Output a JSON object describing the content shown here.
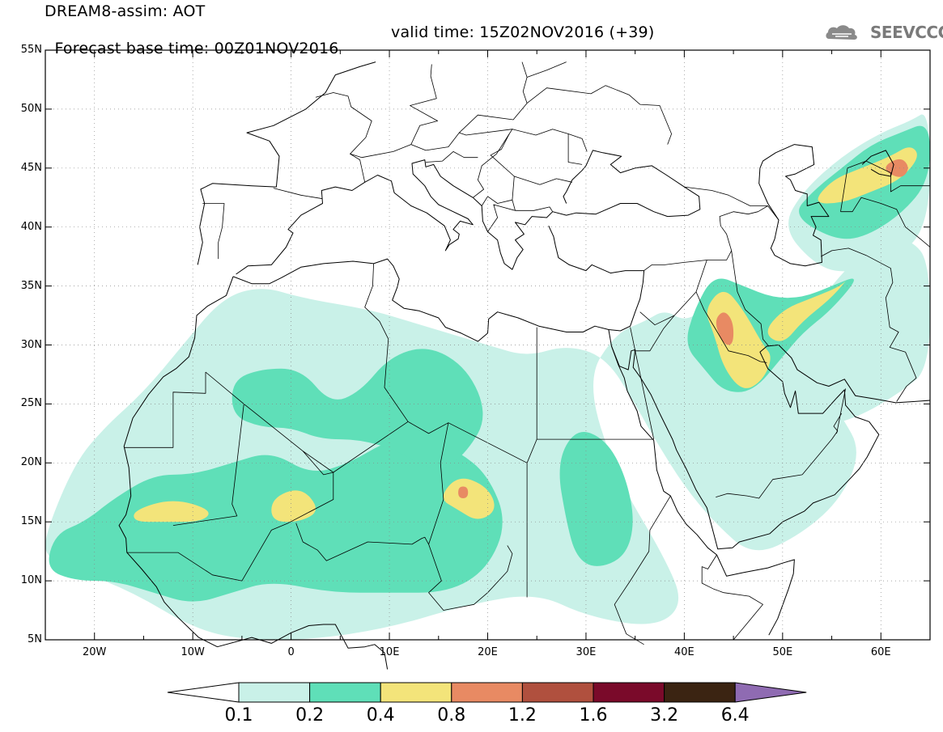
{
  "title": {
    "line1": "DREAM8-assim: AOT",
    "line2_base": "Forecast base time: 00Z01NOV2016",
    "line2_valid": "valid time: 15Z02NOV2016 (+39)"
  },
  "logo": {
    "text": "SEEVCCC",
    "icon": "cloud-icon"
  },
  "axes": {
    "lat_labels": [
      "55N",
      "50N",
      "45N",
      "40N",
      "35N",
      "30N",
      "25N",
      "20N",
      "15N",
      "10N",
      "5N"
    ],
    "lon_labels": [
      "20W",
      "10W",
      "0",
      "10E",
      "20E",
      "30E",
      "40E",
      "50E",
      "60E"
    ]
  },
  "colorbar": {
    "labels": [
      "0.1",
      "0.2",
      "0.4",
      "0.8",
      "1.2",
      "1.6",
      "3.2",
      "6.4"
    ],
    "colors": [
      "#ffffff",
      "#c9f1e8",
      "#5fdfb8",
      "#f3e47a",
      "#e88a63",
      "#b0503e",
      "#7a0a2a",
      "#3b2412",
      "#8f6bb2"
    ]
  },
  "chart_data": {
    "type": "heatmap",
    "variable": "AOT",
    "lat_range": [
      5,
      55
    ],
    "lon_range": [
      -25,
      65
    ],
    "levels": [
      0.1,
      0.2,
      0.4,
      0.8,
      1.2,
      1.6,
      3.2,
      6.4
    ],
    "regions": [
      {
        "level": 0.1,
        "pts": [
          [
            -25,
            14
          ],
          [
            -22,
            20
          ],
          [
            -19,
            23
          ],
          [
            -15,
            26
          ],
          [
            -11,
            30
          ],
          [
            -7,
            34
          ],
          [
            -3,
            35
          ],
          [
            1,
            34
          ],
          [
            8,
            33
          ],
          [
            12,
            32
          ],
          [
            16,
            31
          ],
          [
            20,
            30
          ],
          [
            24,
            29
          ],
          [
            28,
            30
          ],
          [
            32,
            29
          ],
          [
            35,
            25
          ],
          [
            37,
            22
          ],
          [
            40,
            18
          ],
          [
            43,
            15
          ],
          [
            47,
            12
          ],
          [
            52,
            14
          ],
          [
            56,
            17
          ],
          [
            58,
            21
          ],
          [
            56,
            24
          ],
          [
            54,
            26
          ],
          [
            51,
            27
          ],
          [
            49,
            29
          ],
          [
            47,
            32
          ],
          [
            45,
            34
          ],
          [
            43,
            35
          ],
          [
            42,
            33
          ],
          [
            40,
            32
          ],
          [
            38,
            33
          ],
          [
            36,
            32
          ],
          [
            33,
            31
          ],
          [
            30,
            27
          ],
          [
            33,
            19
          ],
          [
            38,
            12
          ],
          [
            40,
            8
          ],
          [
            37,
            6
          ],
          [
            30,
            7
          ],
          [
            25,
            9
          ],
          [
            18,
            8
          ],
          [
            10,
            6
          ],
          [
            2,
            5
          ],
          [
            -5,
            5
          ],
          [
            -10,
            6
          ],
          [
            -16,
            9
          ],
          [
            -22,
            11
          ],
          [
            -25,
            12
          ]
        ]
      },
      {
        "level": 0.1,
        "pts": [
          [
            48,
            28
          ],
          [
            50,
            25
          ],
          [
            54,
            23
          ],
          [
            58,
            24
          ],
          [
            62,
            26
          ],
          [
            65,
            28
          ],
          [
            65,
            37
          ],
          [
            63,
            39
          ],
          [
            60,
            39
          ],
          [
            57,
            37
          ],
          [
            53,
            33
          ],
          [
            50,
            31
          ]
        ]
      },
      {
        "level": 0.1,
        "pts": [
          [
            50,
            40
          ],
          [
            52,
            43
          ],
          [
            56,
            46
          ],
          [
            60,
            48
          ],
          [
            63,
            49
          ],
          [
            65,
            50
          ],
          [
            65,
            40
          ],
          [
            61,
            37
          ],
          [
            56,
            36
          ],
          [
            53,
            37
          ]
        ]
      },
      {
        "level": 0.2,
        "pts": [
          [
            -25,
            11
          ],
          [
            -24,
            14
          ],
          [
            -21,
            15
          ],
          [
            -18,
            17
          ],
          [
            -14,
            19
          ],
          [
            -10,
            19
          ],
          [
            -6,
            20
          ],
          [
            -2,
            21
          ],
          [
            2,
            19
          ],
          [
            6,
            20
          ],
          [
            10,
            22
          ],
          [
            14,
            22
          ],
          [
            17,
            21
          ],
          [
            20,
            19
          ],
          [
            22,
            15
          ],
          [
            20,
            11
          ],
          [
            16,
            9
          ],
          [
            10,
            9
          ],
          [
            4,
            9
          ],
          [
            -2,
            10
          ],
          [
            -6,
            9
          ],
          [
            -10,
            8
          ],
          [
            -14,
            9
          ],
          [
            -18,
            10
          ],
          [
            -22,
            10
          ]
        ]
      },
      {
        "level": 0.2,
        "pts": [
          [
            -6,
            27
          ],
          [
            -3,
            28
          ],
          [
            1,
            28
          ],
          [
            4,
            25
          ],
          [
            7,
            26
          ],
          [
            10,
            29
          ],
          [
            14,
            30
          ],
          [
            18,
            28
          ],
          [
            20,
            24
          ],
          [
            18,
            21
          ],
          [
            15,
            19
          ],
          [
            11,
            21
          ],
          [
            7,
            22
          ],
          [
            3,
            22
          ],
          [
            0,
            23
          ],
          [
            -3,
            23
          ],
          [
            -6,
            24
          ]
        ]
      },
      {
        "level": 0.2,
        "pts": [
          [
            27,
            20
          ],
          [
            29,
            23
          ],
          [
            32,
            22
          ],
          [
            34,
            19
          ],
          [
            35,
            15
          ],
          [
            34,
            12
          ],
          [
            31,
            11
          ],
          [
            29,
            12
          ],
          [
            28,
            15
          ]
        ]
      },
      {
        "level": 0.2,
        "pts": [
          [
            41,
            33
          ],
          [
            43,
            36
          ],
          [
            46,
            35
          ],
          [
            49,
            34
          ],
          [
            52,
            34
          ],
          [
            55,
            35
          ],
          [
            58,
            36
          ],
          [
            55,
            33
          ],
          [
            52,
            31
          ],
          [
            50,
            29
          ],
          [
            47,
            26
          ],
          [
            44,
            26
          ],
          [
            42,
            28
          ],
          [
            40,
            30
          ]
        ]
      },
      {
        "level": 0.2,
        "pts": [
          [
            51,
            41
          ],
          [
            53,
            43
          ],
          [
            56,
            45
          ],
          [
            59,
            47
          ],
          [
            62,
            48
          ],
          [
            65,
            49
          ],
          [
            65,
            44
          ],
          [
            62,
            41
          ],
          [
            58,
            39
          ],
          [
            55,
            39
          ]
        ]
      },
      {
        "level": 0.4,
        "pts": [
          [
            -16,
            16
          ],
          [
            -12,
            17
          ],
          [
            -8,
            16
          ],
          [
            -9,
            15
          ],
          [
            -13,
            15
          ],
          [
            -16,
            15
          ]
        ]
      },
      {
        "level": 0.4,
        "pts": [
          [
            -2,
            17
          ],
          [
            1,
            18
          ],
          [
            3,
            16
          ],
          [
            1,
            15
          ],
          [
            -2,
            15
          ]
        ]
      },
      {
        "level": 0.4,
        "pts": [
          [
            15,
            17
          ],
          [
            17,
            19
          ],
          [
            20,
            18
          ],
          [
            21,
            16
          ],
          [
            19,
            15
          ],
          [
            17,
            16
          ]
        ]
      },
      {
        "level": 0.4,
        "pts": [
          [
            42,
            33
          ],
          [
            44,
            35
          ],
          [
            46,
            33
          ],
          [
            48,
            30
          ],
          [
            49,
            29
          ],
          [
            48,
            27
          ],
          [
            46,
            26
          ],
          [
            44,
            28
          ],
          [
            43,
            31
          ]
        ]
      },
      {
        "level": 0.4,
        "pts": [
          [
            48,
            31
          ],
          [
            50,
            33
          ],
          [
            53,
            34
          ],
          [
            56,
            35
          ],
          [
            57,
            36
          ],
          [
            55,
            34
          ],
          [
            52,
            32
          ],
          [
            50,
            30
          ]
        ]
      },
      {
        "level": 0.4,
        "pts": [
          [
            53,
            42
          ],
          [
            55,
            44
          ],
          [
            58,
            45
          ],
          [
            61,
            46
          ],
          [
            63,
            47
          ],
          [
            64,
            46
          ],
          [
            62,
            44
          ],
          [
            59,
            43
          ],
          [
            56,
            42
          ]
        ]
      },
      {
        "level": 0.8,
        "pts": [
          [
            43,
            32
          ],
          [
            44,
            33
          ],
          [
            45,
            32
          ],
          [
            45,
            30
          ],
          [
            44,
            30
          ]
        ]
      },
      {
        "level": 0.8,
        "pts": [
          [
            17,
            18
          ],
          [
            18,
            18
          ],
          [
            18,
            17
          ],
          [
            17,
            17
          ]
        ]
      },
      {
        "level": 0.8,
        "pts": [
          [
            60,
            45
          ],
          [
            62,
            46
          ],
          [
            63,
            45
          ],
          [
            62,
            44
          ]
        ]
      }
    ]
  }
}
